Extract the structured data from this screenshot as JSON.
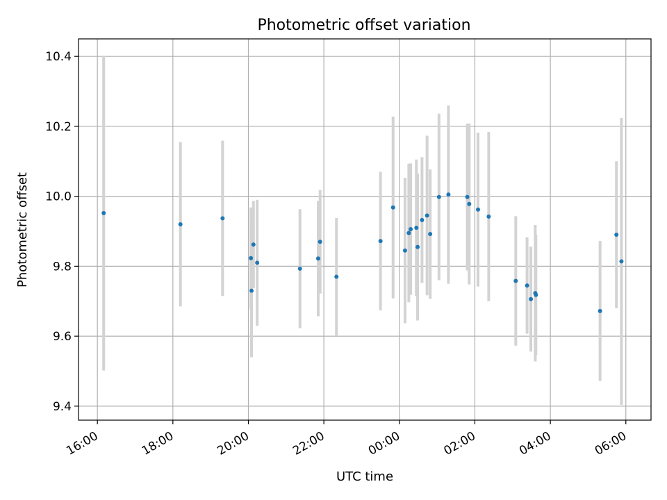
{
  "chart_data": {
    "type": "scatter",
    "title": "Photometric offset variation",
    "xlabel": "UTC time",
    "ylabel": "Photometric offset",
    "x_axis": "time",
    "xlim": [
      "15:30",
      "30:40"
    ],
    "ylim": [
      9.36,
      10.45
    ],
    "x_ticks": [
      "16:00",
      "18:00",
      "20:00",
      "22:00",
      "00:00",
      "02:00",
      "04:00",
      "06:00"
    ],
    "y_ticks": [
      "9.4",
      "9.6",
      "9.8",
      "10.0",
      "10.2",
      "10.4"
    ],
    "grid": true,
    "colors": {
      "marker": "#1f77b4",
      "errorbar": "#d3d3d3",
      "grid": "#b0b0b0"
    },
    "series": [
      {
        "points": [
          {
            "x": "16:10",
            "y": 9.952,
            "err": 0.45
          },
          {
            "x": "18:12",
            "y": 9.92,
            "err": 0.235
          },
          {
            "x": "19:19",
            "y": 9.937,
            "err": 0.222
          },
          {
            "x": "20:04",
            "y": 9.823,
            "err": 0.145
          },
          {
            "x": "20:05",
            "y": 9.73,
            "err": 0.19
          },
          {
            "x": "20:08",
            "y": 9.862,
            "err": 0.125
          },
          {
            "x": "20:14",
            "y": 9.81,
            "err": 0.18
          },
          {
            "x": "21:22",
            "y": 9.793,
            "err": 0.17
          },
          {
            "x": "21:51",
            "y": 9.822,
            "err": 0.165
          },
          {
            "x": "21:54",
            "y": 9.87,
            "err": 0.148
          },
          {
            "x": "22:20",
            "y": 9.77,
            "err": 0.168
          },
          {
            "x": "23:30",
            "y": 9.872,
            "err": 0.198
          },
          {
            "x": "23:50",
            "y": 9.968,
            "err": 0.26
          },
          {
            "x": "24:09",
            "y": 9.845,
            "err": 0.208
          },
          {
            "x": "24:15",
            "y": 9.895,
            "err": 0.198
          },
          {
            "x": "24:18",
            "y": 9.906,
            "err": 0.188
          },
          {
            "x": "24:27",
            "y": 9.91,
            "err": 0.195
          },
          {
            "x": "24:29",
            "y": 9.855,
            "err": 0.21
          },
          {
            "x": "24:36",
            "y": 9.932,
            "err": 0.18
          },
          {
            "x": "24:44",
            "y": 9.945,
            "err": 0.228
          },
          {
            "x": "24:49",
            "y": 9.892,
            "err": 0.185
          },
          {
            "x": "25:03",
            "y": 9.998,
            "err": 0.238
          },
          {
            "x": "25:18",
            "y": 10.005,
            "err": 0.255
          },
          {
            "x": "25:48",
            "y": 9.998,
            "err": 0.21
          },
          {
            "x": "25:51",
            "y": 9.978,
            "err": 0.23
          },
          {
            "x": "26:05",
            "y": 9.962,
            "err": 0.22
          },
          {
            "x": "26:22",
            "y": 9.942,
            "err": 0.242
          },
          {
            "x": "27:05",
            "y": 9.758,
            "err": 0.185
          },
          {
            "x": "27:23",
            "y": 9.745,
            "err": 0.138
          },
          {
            "x": "27:29",
            "y": 9.706,
            "err": 0.15
          },
          {
            "x": "27:36",
            "y": 9.723,
            "err": 0.195
          },
          {
            "x": "27:37",
            "y": 9.718,
            "err": 0.172
          },
          {
            "x": "29:19",
            "y": 9.672,
            "err": 0.2
          },
          {
            "x": "29:45",
            "y": 9.89,
            "err": 0.21
          },
          {
            "x": "29:53",
            "y": 9.814,
            "err": 0.41
          }
        ]
      }
    ]
  }
}
